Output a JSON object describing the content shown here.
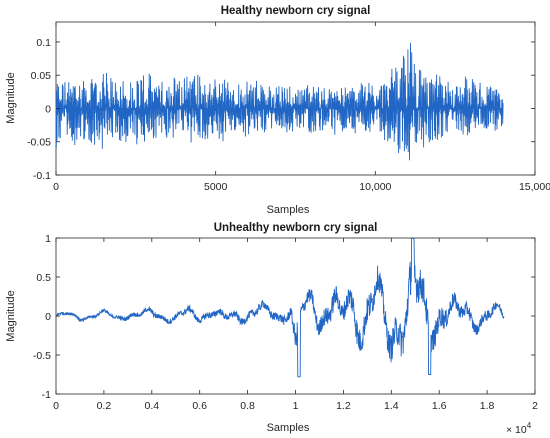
{
  "chart_data": [
    {
      "type": "line",
      "title": "Healthy newborn cry signal",
      "xlabel": "Samples",
      "ylabel": "Magnitude",
      "xlim": [
        0,
        15000
      ],
      "ylim": [
        -0.1,
        0.13
      ],
      "xticks": [
        0,
        5000,
        10000,
        15000
      ],
      "xtick_labels": [
        "0",
        "5000",
        "10,000",
        "15,000"
      ],
      "yticks": [
        -0.1,
        -0.05,
        0,
        0.05,
        0.1
      ],
      "ytick_labels": [
        "-0.1",
        "-0.05",
        "0",
        "0.05",
        "0.1"
      ],
      "grid": false,
      "color": "#2166c4",
      "series": [
        {
          "n_samples": 14000,
          "x": [
            0,
            300,
            600,
            900,
            1200,
            1500,
            1800,
            2100,
            2400,
            2700,
            3000,
            3300,
            3600,
            3900,
            4200,
            4500,
            4800,
            5100,
            5400,
            5700,
            6000,
            6300,
            6600,
            6900,
            7200,
            7500,
            7800,
            8100,
            8400,
            8700,
            9000,
            9300,
            9600,
            9900,
            10200,
            10500,
            10800,
            11100,
            11400,
            11700,
            12000,
            12300,
            12600,
            12900,
            13200,
            13500,
            13800,
            14000
          ],
          "upper": [
            0.06,
            0.05,
            0.05,
            0.06,
            0.05,
            0.07,
            0.05,
            0.06,
            0.05,
            0.07,
            0.06,
            0.05,
            0.05,
            0.06,
            0.07,
            0.06,
            0.05,
            0.06,
            0.05,
            0.045,
            0.05,
            0.045,
            0.04,
            0.045,
            0.05,
            0.04,
            0.045,
            0.04,
            0.04,
            0.035,
            0.04,
            0.045,
            0.045,
            0.05,
            0.05,
            0.07,
            0.08,
            0.13,
            0.07,
            0.065,
            0.06,
            0.05,
            0.045,
            0.06,
            0.05,
            0.045,
            0.035,
            0.03
          ],
          "lower": [
            -0.07,
            -0.06,
            -0.065,
            -0.055,
            -0.07,
            -0.06,
            -0.065,
            -0.06,
            -0.07,
            -0.06,
            -0.055,
            -0.065,
            -0.06,
            -0.05,
            -0.065,
            -0.06,
            -0.055,
            -0.06,
            -0.05,
            -0.045,
            -0.05,
            -0.05,
            -0.04,
            -0.045,
            -0.05,
            -0.045,
            -0.04,
            -0.045,
            -0.04,
            -0.04,
            -0.045,
            -0.045,
            -0.05,
            -0.05,
            -0.055,
            -0.06,
            -0.075,
            -0.1,
            -0.08,
            -0.06,
            -0.055,
            -0.05,
            -0.045,
            -0.05,
            -0.045,
            -0.04,
            -0.04,
            -0.03
          ]
        }
      ]
    },
    {
      "type": "line",
      "title": "Unhealthy newborn cry signal",
      "xlabel": "Samples",
      "ylabel": "Magnitude",
      "xlim": [
        0,
        20000
      ],
      "ylim": [
        -1,
        1
      ],
      "xticks": [
        0,
        2000,
        4000,
        6000,
        8000,
        10000,
        12000,
        14000,
        16000,
        18000,
        20000
      ],
      "xtick_labels": [
        "0",
        "0.2",
        "0.4",
        "0.6",
        "0.8",
        "1",
        "1.2",
        "1.4",
        "1.6",
        "1.8",
        "2"
      ],
      "x_exponent_label": "× 10",
      "x_exponent_power": "4",
      "yticks": [
        -1,
        -0.5,
        0,
        0.5,
        1
      ],
      "ytick_labels": [
        "-1",
        "-0.5",
        "0",
        "0.5",
        "1"
      ],
      "grid": false,
      "color": "#2166c4",
      "series": [
        {
          "n_samples": 18700,
          "x": [
            0,
            500,
            1000,
            1500,
            2000,
            2500,
            3000,
            3500,
            4000,
            4500,
            5000,
            5500,
            6000,
            6500,
            7000,
            7500,
            8000,
            8500,
            9000,
            9300,
            9600,
            9800,
            10000,
            10200,
            10400,
            10700,
            11000,
            11300,
            11600,
            11900,
            12200,
            12500,
            12800,
            13100,
            13400,
            13700,
            14000,
            14300,
            14600,
            14900,
            15200,
            15500,
            15800,
            16100,
            16400,
            16800,
            17200,
            17600,
            18000,
            18400,
            18700
          ],
          "center": [
            0,
            0.02,
            -0.02,
            0,
            0.03,
            -0.02,
            0.02,
            0,
            0.05,
            0,
            -0.05,
            0.05,
            0,
            0.05,
            -0.05,
            0.03,
            0,
            0.05,
            0.05,
            0.02,
            0.05,
            0.05,
            -0.5,
            0,
            0.05,
            0.3,
            -0.05,
            0.1,
            0.1,
            -0.1,
            0.2,
            0.15,
            -0.1,
            0.1,
            0.3,
            -0.1,
            -0.3,
            0.05,
            0.05,
            0.3,
            0.2,
            -0.1,
            -0.05,
            0.1,
            0.05,
            0,
            0.05,
            -0.05,
            0,
            0.05,
            0
          ],
          "spread": [
            0.04,
            0.04,
            0.05,
            0.04,
            0.05,
            0.05,
            0.06,
            0.05,
            0.08,
            0.07,
            0.08,
            0.09,
            0.08,
            0.1,
            0.09,
            0.1,
            0.1,
            0.12,
            0.12,
            0.12,
            0.14,
            0.15,
            0.3,
            0.2,
            0.18,
            0.2,
            0.25,
            0.25,
            0.3,
            0.25,
            0.3,
            0.4,
            0.35,
            0.4,
            0.35,
            0.35,
            0.4,
            0.45,
            0.5,
            0.6,
            0.45,
            0.4,
            0.35,
            0.3,
            0.25,
            0.2,
            0.2,
            0.15,
            0.15,
            0.12,
            0.1
          ]
        }
      ]
    }
  ]
}
